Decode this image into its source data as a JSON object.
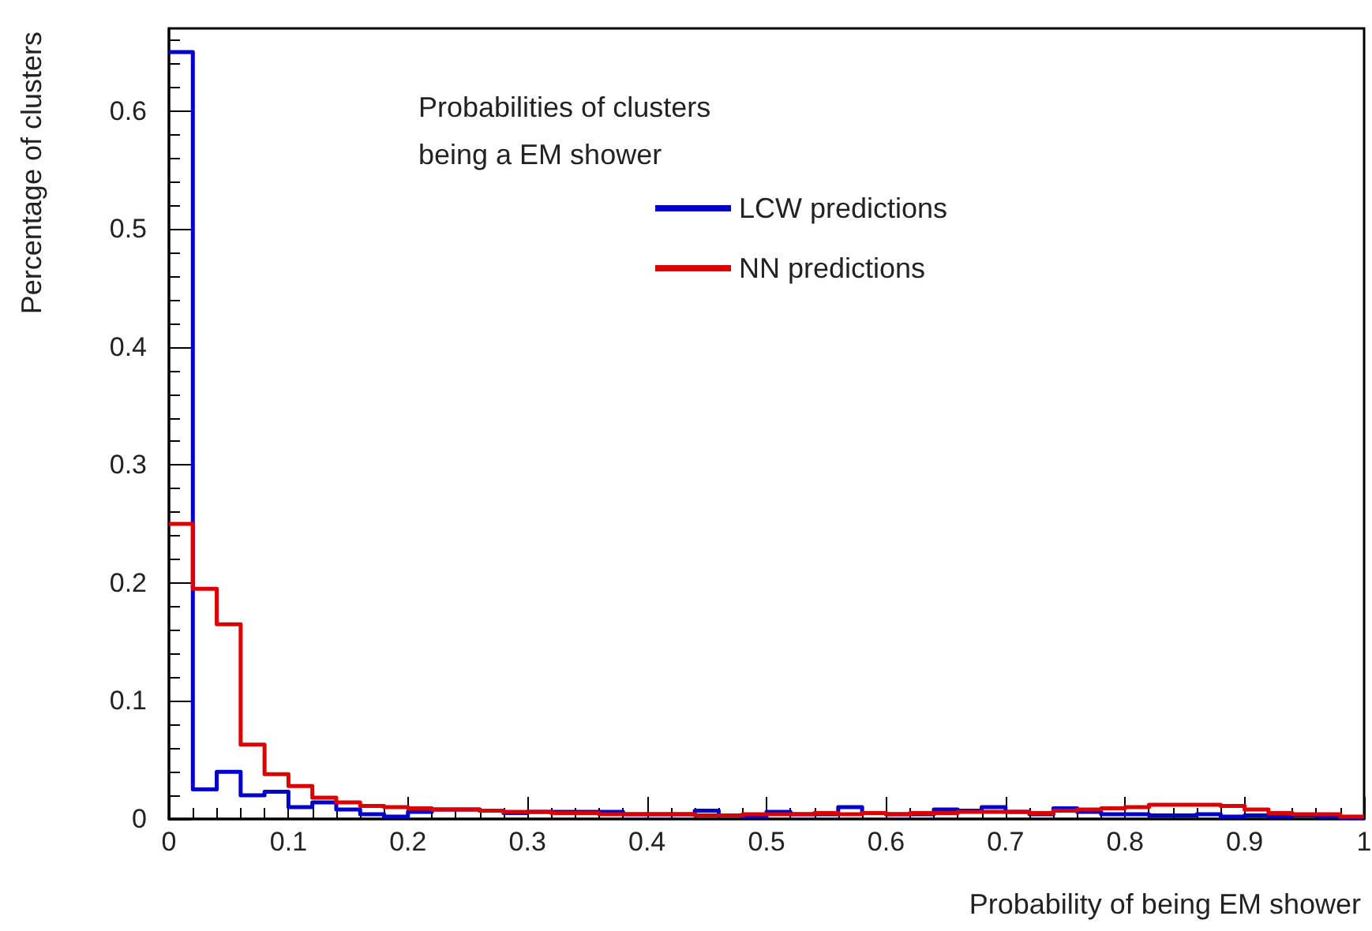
{
  "chart_data": {
    "type": "histogram",
    "xlabel": "Probability of being EM shower",
    "ylabel": "Percentage of clusters",
    "legend_title": "Probabilities of clusters\nbeing a EM shower",
    "bins": [
      0,
      0.02,
      0.04,
      0.06,
      0.08,
      0.1,
      0.12,
      0.14,
      0.16,
      0.18,
      0.2,
      0.22,
      0.24,
      0.26,
      0.28,
      0.3,
      0.32,
      0.34,
      0.36,
      0.38,
      0.4,
      0.42,
      0.44,
      0.46,
      0.48,
      0.5,
      0.52,
      0.54,
      0.56,
      0.58,
      0.6,
      0.62,
      0.64,
      0.66,
      0.68,
      0.7,
      0.72,
      0.74,
      0.76,
      0.78,
      0.8,
      0.82,
      0.84,
      0.86,
      0.88,
      0.9,
      0.92,
      0.94,
      0.96,
      0.98,
      1
    ],
    "series": [
      {
        "name": "LCW predictions",
        "color": "#0000cc",
        "values": [
          0.65,
          0.025,
          0.04,
          0.02,
          0.023,
          0.01,
          0.014,
          0.008,
          0.004,
          0.002,
          0.006,
          0.008,
          0.008,
          0.007,
          0.005,
          0.006,
          0.006,
          0.006,
          0.006,
          0.004,
          0.004,
          0.004,
          0.007,
          0.003,
          0.002,
          0.006,
          0.004,
          0.004,
          0.01,
          0.005,
          0.004,
          0.004,
          0.008,
          0.007,
          0.01,
          0.006,
          0.004,
          0.009,
          0.006,
          0.004,
          0.004,
          0.003,
          0.003,
          0.004,
          0.002,
          0.003,
          0.002,
          0.003,
          0.002,
          0.001
        ]
      },
      {
        "name": "NN predictions",
        "color": "#dd0000",
        "values": [
          0.25,
          0.195,
          0.165,
          0.063,
          0.038,
          0.028,
          0.018,
          0.014,
          0.011,
          0.01,
          0.009,
          0.008,
          0.008,
          0.007,
          0.006,
          0.006,
          0.005,
          0.005,
          0.004,
          0.004,
          0.004,
          0.004,
          0.003,
          0.003,
          0.004,
          0.004,
          0.004,
          0.005,
          0.004,
          0.005,
          0.004,
          0.005,
          0.005,
          0.006,
          0.006,
          0.006,
          0.005,
          0.007,
          0.008,
          0.009,
          0.01,
          0.012,
          0.012,
          0.012,
          0.011,
          0.008,
          0.005,
          0.004,
          0.004,
          0.002
        ]
      }
    ],
    "xlim": [
      0,
      1
    ],
    "xticks": [
      0,
      0.1,
      0.2,
      0.3,
      0.4,
      0.5,
      0.6,
      0.7,
      0.8,
      0.9,
      1
    ],
    "ylim": [
      0,
      0.67
    ],
    "yticks": [
      0,
      0.1,
      0.2,
      0.3,
      0.4,
      0.5,
      0.6
    ],
    "legend": "top",
    "grid": false
  }
}
